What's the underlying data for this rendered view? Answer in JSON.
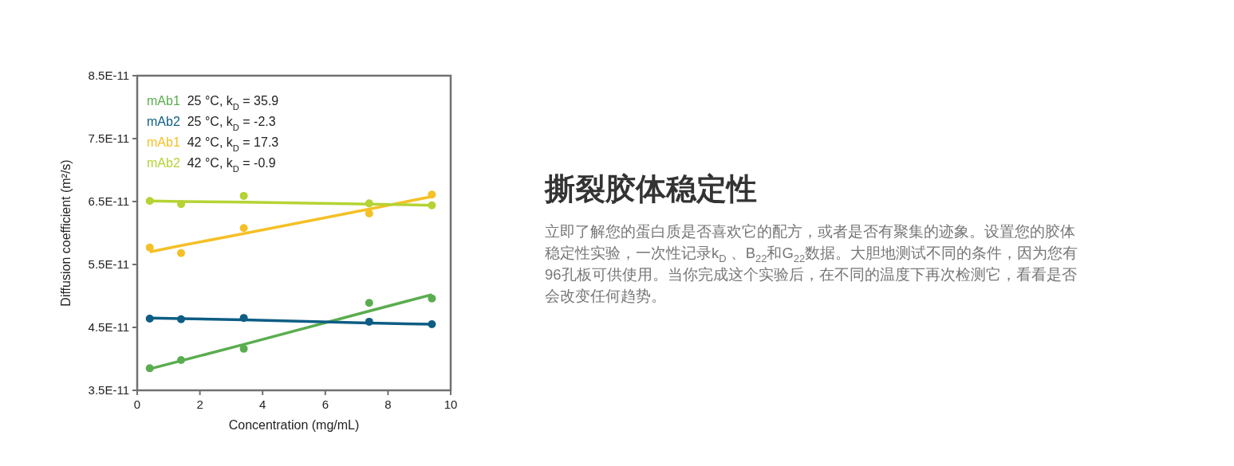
{
  "chart_data": [
    {
      "type": "scatter",
      "xlabel": "Concentration (mg/mL)",
      "ylabel": "Diffusion coefficient (m²/s)",
      "xlim": [
        0,
        10
      ],
      "xticks": [
        0,
        2,
        4,
        6,
        8,
        10
      ],
      "ylim": [
        3.5e-11,
        8.5e-11
      ],
      "yticks": [
        {
          "value": 3.5e-11,
          "label": "3.5E-11"
        },
        {
          "value": 4.5e-11,
          "label": "4.5E-11"
        },
        {
          "value": 5.5e-11,
          "label": "5.5E-11"
        },
        {
          "value": 6.5e-11,
          "label": "6.5E-11"
        },
        {
          "value": 7.5e-11,
          "label": "7.5E-11"
        },
        {
          "value": 8.5e-11,
          "label": "8.5E-11"
        }
      ],
      "grid": false,
      "legend": "top left",
      "x": [
        0.4,
        1.4,
        3.4,
        7.4,
        9.4
      ],
      "series": [
        {
          "name": "mAb1 25 °C, k$_{D}$ = 35.9",
          "color": "#5aad4f",
          "marker": "circle",
          "values": [
            3.85e-11,
            3.98e-11,
            4.16e-11,
            4.89e-11,
            4.96e-11
          ]
        },
        {
          "name": "mAb2 25 °C, k$_{D}$ = -2.3",
          "color": "#0e5d84",
          "marker": "circle",
          "values": [
            4.64e-11,
            4.63e-11,
            4.65e-11,
            4.59e-11,
            4.55e-11
          ]
        },
        {
          "name": "mAb1 42 °C, k$_{D}$ = 17.3",
          "color": "#f5c026",
          "marker": "circle",
          "values": [
            5.77e-11,
            5.68e-11,
            6.08e-11,
            6.31e-11,
            6.61e-11
          ]
        },
        {
          "name": "mAb2 42 °C, k$_{D}$ = -0.9",
          "color": "#b5d334",
          "marker": "circle",
          "values": [
            6.51e-11,
            6.46e-11,
            6.59e-11,
            6.47e-11,
            6.44e-11
          ]
        },
        {
          "type": "line",
          "color": "#5aad4f",
          "values": [
            3.84e-11,
            3.97e-11,
            4.23e-11,
            4.76e-11,
            5.02e-11
          ]
        },
        {
          "type": "line",
          "color": "#0e5d84",
          "values": [
            4.65e-11,
            4.64e-11,
            4.62e-11,
            4.57e-11,
            4.55e-11
          ]
        },
        {
          "type": "line",
          "color": "#f5c026",
          "values": [
            5.7e-11,
            5.8e-11,
            5.99e-11,
            6.38e-11,
            6.58e-11
          ]
        },
        {
          "type": "line",
          "color": "#b5d334",
          "values": [
            6.51e-11,
            6.5e-11,
            6.49e-11,
            6.46e-11,
            6.44e-11
          ]
        }
      ]
    },
    {
      "type": "other",
      "title": "撕裂胶体稳定性",
      "annotations": [
        "立即了解您的蛋白质是否喜欢它的配方，或者是否有聚集的迹象。设置您的胶体稳定性实验，一次性记录k$_{D}$ 、B$_{22}$和G$_{22}$数据。大胆地测试不同的条件，因为您有96孔板可供使用。当你完成这个实验后，在不同的温度下再次检测它，看看是否会改变任何趋势。"
      ]
    }
  ]
}
